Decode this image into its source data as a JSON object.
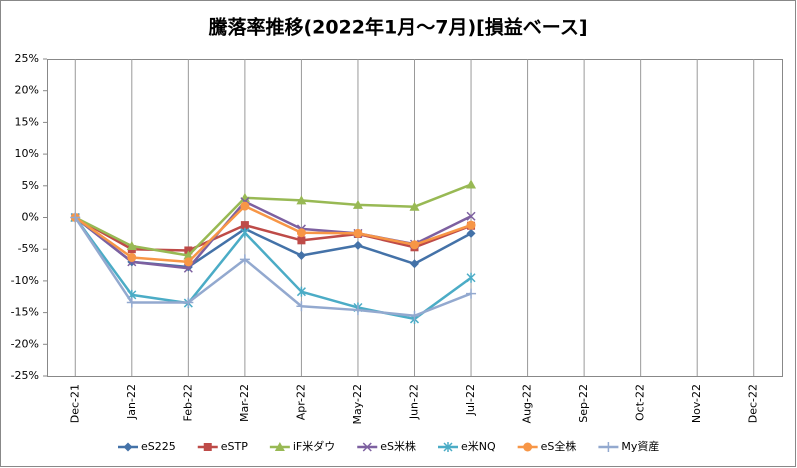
{
  "chart_data": {
    "type": "line",
    "title": "騰落率推移(2022年1月～7月)[損益ベース]",
    "categories": [
      "Dec-21",
      "Jan-22",
      "Feb-22",
      "Mar-22",
      "Apr-22",
      "May-22",
      "Jun-22",
      "Jul-22",
      "Aug-22",
      "Sep-22",
      "Oct-22",
      "Nov-22",
      "Dec-22"
    ],
    "ylim": [
      -25,
      25
    ],
    "yticks": [
      {
        "value": -25,
        "label": "-25%"
      },
      {
        "value": -20,
        "label": "-20%"
      },
      {
        "value": -15,
        "label": "-15%"
      },
      {
        "value": -10,
        "label": "-10%"
      },
      {
        "value": -5,
        "label": "-5%"
      },
      {
        "value": 0,
        "label": "0%"
      },
      {
        "value": 5,
        "label": "5%"
      },
      {
        "value": 10,
        "label": "10%"
      },
      {
        "value": 15,
        "label": "15%"
      },
      {
        "value": 20,
        "label": "20%"
      },
      {
        "value": 25,
        "label": "25%"
      }
    ],
    "grid": true,
    "legend": "bottom",
    "series": [
      {
        "name": "eS225",
        "color": "#4472a8",
        "marker": "diamond",
        "values": [
          0,
          -7.0,
          -7.8,
          -1.8,
          -6.0,
          -4.4,
          -7.3,
          -2.5,
          null,
          null,
          null,
          null,
          null
        ]
      },
      {
        "name": "eSTP",
        "color": "#be4b48",
        "marker": "square",
        "values": [
          0,
          -5.0,
          -5.2,
          -1.2,
          -3.6,
          -2.6,
          -4.7,
          -1.3,
          null,
          null,
          null,
          null,
          null
        ]
      },
      {
        "name": "iF米ダウ",
        "color": "#98b954",
        "marker": "triangle",
        "values": [
          0,
          -4.5,
          -6.0,
          3.1,
          2.7,
          2.0,
          1.7,
          5.2,
          null,
          null,
          null,
          null,
          null
        ]
      },
      {
        "name": "eS米株",
        "color": "#7d60a0",
        "marker": "x",
        "values": [
          0,
          -7.0,
          -8.0,
          2.5,
          -1.8,
          -2.5,
          -4.2,
          0.2,
          null,
          null,
          null,
          null,
          null
        ]
      },
      {
        "name": "e米NQ",
        "color": "#4bacc6",
        "marker": "star",
        "values": [
          0,
          -12.2,
          -13.5,
          -2.4,
          -11.7,
          -14.2,
          -16.0,
          -9.5,
          null,
          null,
          null,
          null,
          null
        ]
      },
      {
        "name": "eS全株",
        "color": "#f79646",
        "marker": "circle",
        "values": [
          0,
          -6.3,
          -7.0,
          1.8,
          -2.4,
          -2.5,
          -4.3,
          -1.2,
          null,
          null,
          null,
          null,
          null
        ]
      },
      {
        "name": "My資産",
        "color": "#93a9cf",
        "marker": "plus",
        "values": [
          0,
          -13.4,
          -13.4,
          -6.6,
          -14.0,
          -14.6,
          -15.5,
          -12.0,
          null,
          null,
          null,
          null,
          null
        ]
      }
    ]
  }
}
